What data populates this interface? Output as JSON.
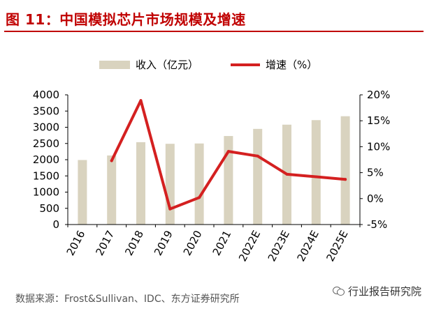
{
  "title": "图 11：中国模拟芯片市场规模及增速",
  "source": "数据来源：Frost&Sullivan、IDC、东方证券研究所",
  "watermark": "行业报告研究院",
  "colors": {
    "bar": "#d9d3bf",
    "line": "#d42020",
    "title": "#c00000"
  },
  "chart_data": {
    "type": "bar",
    "categories": [
      "2016",
      "2017",
      "2018",
      "2019",
      "2020",
      "2021",
      "2022E",
      "2023E",
      "2024E",
      "2025E"
    ],
    "series": [
      {
        "name": "收入（亿元）",
        "type": "bar",
        "axis": "left",
        "values": [
          1990,
          2130,
          2540,
          2490,
          2500,
          2730,
          2950,
          3080,
          3220,
          3340
        ]
      },
      {
        "name": "增速（%）",
        "type": "line",
        "axis": "right",
        "values": [
          null,
          7.3,
          18.9,
          -2.0,
          0.2,
          9.1,
          8.2,
          4.7,
          4.2,
          3.7
        ]
      }
    ],
    "y_left": {
      "min": 0,
      "max": 4000,
      "ticks": [
        "0",
        "500",
        "1000",
        "1500",
        "2000",
        "2500",
        "3000",
        "3500",
        "4000"
      ]
    },
    "y_right": {
      "min": -5,
      "max": 20,
      "ticks": [
        "-5%",
        "0%",
        "5%",
        "10%",
        "15%",
        "20%"
      ]
    },
    "legend_position": "top",
    "grid": false
  }
}
